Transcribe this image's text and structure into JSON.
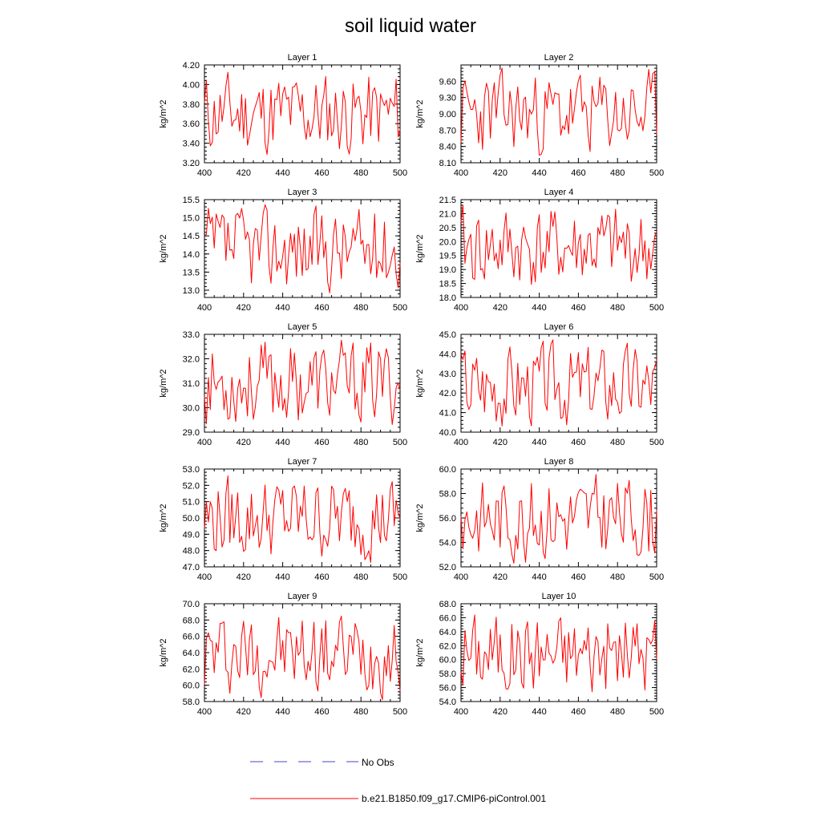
{
  "title": "soil liquid water",
  "legend": [
    {
      "label": "No Obs",
      "color": "#4444cc",
      "dash": true
    },
    {
      "label": "b.e21.B1850.f09_g17.CMIP6-piControl.001",
      "color": "#ff0000",
      "dash": false
    }
  ],
  "chart_data": [
    {
      "type": "line",
      "title": "Layer 1",
      "ylabel": "kg/m^2",
      "xlim": [
        400,
        500
      ],
      "xticks": [
        400,
        420,
        440,
        460,
        480,
        500
      ],
      "ylim": [
        3.2,
        4.2
      ],
      "yticks": [
        "3.20",
        "3.40",
        "3.60",
        "3.80",
        "4.00",
        "4.20"
      ],
      "series": [
        {
          "name": "b.e21.B1850.f09_g17.CMIP6-piControl.001",
          "color": "#ff0000",
          "seed": 11
        }
      ]
    },
    {
      "type": "line",
      "title": "Layer 2",
      "ylabel": "kg/m^2",
      "xlim": [
        400,
        500
      ],
      "xticks": [
        400,
        420,
        440,
        460,
        480,
        500
      ],
      "ylim": [
        8.1,
        9.9
      ],
      "yticks": [
        "8.10",
        "8.40",
        "8.70",
        "9.00",
        "9.30",
        "9.60"
      ],
      "series": [
        {
          "name": "b.e21.B1850.f09_g17.CMIP6-piControl.001",
          "color": "#ff0000",
          "seed": 23
        }
      ]
    },
    {
      "type": "line",
      "title": "Layer 3",
      "ylabel": "kg/m^2",
      "xlim": [
        400,
        500
      ],
      "xticks": [
        400,
        420,
        440,
        460,
        480,
        500
      ],
      "ylim": [
        12.8,
        15.5
      ],
      "yticks": [
        "13.0",
        "13.5",
        "14.0",
        "14.5",
        "15.0",
        "15.5"
      ],
      "series": [
        {
          "name": "b.e21.B1850.f09_g17.CMIP6-piControl.001",
          "color": "#ff0000",
          "seed": 37
        }
      ]
    },
    {
      "type": "line",
      "title": "Layer 4",
      "ylabel": "kg/m^2",
      "xlim": [
        400,
        500
      ],
      "xticks": [
        400,
        420,
        440,
        460,
        480,
        500
      ],
      "ylim": [
        18.0,
        21.5
      ],
      "yticks": [
        "18.0",
        "18.5",
        "19.0",
        "19.5",
        "20.0",
        "20.5",
        "21.0",
        "21.5"
      ],
      "series": [
        {
          "name": "b.e21.B1850.f09_g17.CMIP6-piControl.001",
          "color": "#ff0000",
          "seed": 41
        }
      ]
    },
    {
      "type": "line",
      "title": "Layer 5",
      "ylabel": "kg/m^2",
      "xlim": [
        400,
        500
      ],
      "xticks": [
        400,
        420,
        440,
        460,
        480,
        500
      ],
      "ylim": [
        29.0,
        33.0
      ],
      "yticks": [
        "29.0",
        "30.0",
        "31.0",
        "32.0",
        "33.0"
      ],
      "series": [
        {
          "name": "b.e21.B1850.f09_g17.CMIP6-piControl.001",
          "color": "#ff0000",
          "seed": 53
        }
      ]
    },
    {
      "type": "line",
      "title": "Layer 6",
      "ylabel": "kg/m^2",
      "xlim": [
        400,
        500
      ],
      "xticks": [
        400,
        420,
        440,
        460,
        480,
        500
      ],
      "ylim": [
        40.0,
        45.0
      ],
      "yticks": [
        "40.0",
        "41.0",
        "42.0",
        "43.0",
        "44.0",
        "45.0"
      ],
      "series": [
        {
          "name": "b.e21.B1850.f09_g17.CMIP6-piControl.001",
          "color": "#ff0000",
          "seed": 67
        }
      ]
    },
    {
      "type": "line",
      "title": "Layer 7",
      "ylabel": "kg/m^2",
      "xlim": [
        400,
        500
      ],
      "xticks": [
        400,
        420,
        440,
        460,
        480,
        500
      ],
      "ylim": [
        47.0,
        53.0
      ],
      "yticks": [
        "47.0",
        "48.0",
        "49.0",
        "50.0",
        "51.0",
        "52.0",
        "53.0"
      ],
      "series": [
        {
          "name": "b.e21.B1850.f09_g17.CMIP6-piControl.001",
          "color": "#ff0000",
          "seed": 79
        }
      ]
    },
    {
      "type": "line",
      "title": "Layer 8",
      "ylabel": "kg/m^2",
      "xlim": [
        400,
        500
      ],
      "xticks": [
        400,
        420,
        440,
        460,
        480,
        500
      ],
      "ylim": [
        52.0,
        60.0
      ],
      "yticks": [
        "52.0",
        "54.0",
        "56.0",
        "58.0",
        "60.0"
      ],
      "series": [
        {
          "name": "b.e21.B1850.f09_g17.CMIP6-piControl.001",
          "color": "#ff0000",
          "seed": 83
        }
      ]
    },
    {
      "type": "line",
      "title": "Layer 9",
      "ylabel": "kg/m^2",
      "xlim": [
        400,
        500
      ],
      "xticks": [
        400,
        420,
        440,
        460,
        480,
        500
      ],
      "ylim": [
        58.0,
        70.0
      ],
      "yticks": [
        "58.0",
        "60.0",
        "62.0",
        "64.0",
        "66.0",
        "68.0",
        "70.0"
      ],
      "series": [
        {
          "name": "b.e21.B1850.f09_g17.CMIP6-piControl.001",
          "color": "#ff0000",
          "seed": 97
        }
      ]
    },
    {
      "type": "line",
      "title": "Layer 10",
      "ylabel": "kg/m^2",
      "xlim": [
        400,
        500
      ],
      "xticks": [
        400,
        420,
        440,
        460,
        480,
        500
      ],
      "ylim": [
        54.0,
        68.0
      ],
      "yticks": [
        "54.0",
        "56.0",
        "58.0",
        "60.0",
        "62.0",
        "64.0",
        "66.0",
        "68.0"
      ],
      "series": [
        {
          "name": "b.e21.B1850.f09_g17.CMIP6-piControl.001",
          "color": "#ff0000",
          "seed": 101
        }
      ]
    }
  ]
}
